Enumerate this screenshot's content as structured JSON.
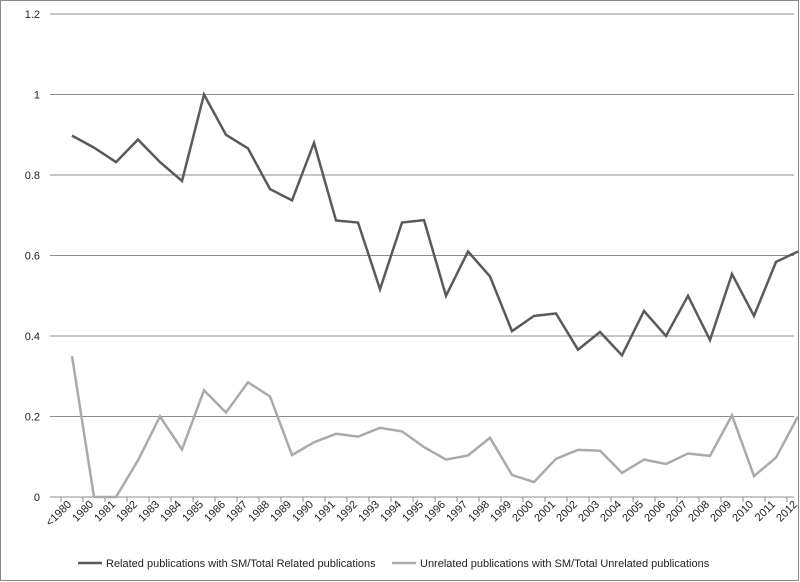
{
  "chart_data": {
    "type": "line",
    "categories": [
      "<1980",
      "1980",
      "1981",
      "1982",
      "1983",
      "1984",
      "1985",
      "1986",
      "1987",
      "1988",
      "1989",
      "1990",
      "1991",
      "1992",
      "1993",
      "1994",
      "1995",
      "1996",
      "1997",
      "1998",
      "1999",
      "2000",
      "2001",
      "2002",
      "2003",
      "2004",
      "2005",
      "2006",
      "2007",
      "2008",
      "2009",
      "2010",
      "2011",
      "2012"
    ],
    "series": [
      {
        "name": "Related publications with SM/Total  Related publications",
        "color": "#5a5a5a",
        "values": [
          0.898,
          0.868,
          0.832,
          0.888,
          0.832,
          0.785,
          1.0,
          0.9,
          0.866,
          0.765,
          0.737,
          0.88,
          0.687,
          0.682,
          0.516,
          0.682,
          0.688,
          0.5,
          0.61,
          0.548,
          0.412,
          0.45,
          0.456,
          0.366,
          0.41,
          0.352,
          0.462,
          0.4,
          0.5,
          0.39,
          0.554,
          0.45,
          0.584,
          0.61
        ]
      },
      {
        "name": "Unrelated publications with SM/Total  Unrelated publications",
        "color": "#aaaaaa",
        "values": [
          0.35,
          0.0,
          0.0,
          0.091,
          0.2,
          0.118,
          0.265,
          0.21,
          0.285,
          0.25,
          0.104,
          0.136,
          0.157,
          0.15,
          0.172,
          0.163,
          0.124,
          0.093,
          0.103,
          0.147,
          0.055,
          0.037,
          0.095,
          0.117,
          0.115,
          0.06,
          0.093,
          0.082,
          0.108,
          0.102,
          0.203,
          0.052,
          0.098,
          0.2
        ]
      }
    ],
    "yticks": [
      "0",
      "0.2",
      "0.4",
      "0.6",
      "0.8",
      "1",
      "1.2"
    ],
    "ylim": [
      0,
      1.2
    ],
    "grid": true,
    "legend_position": "bottom"
  }
}
